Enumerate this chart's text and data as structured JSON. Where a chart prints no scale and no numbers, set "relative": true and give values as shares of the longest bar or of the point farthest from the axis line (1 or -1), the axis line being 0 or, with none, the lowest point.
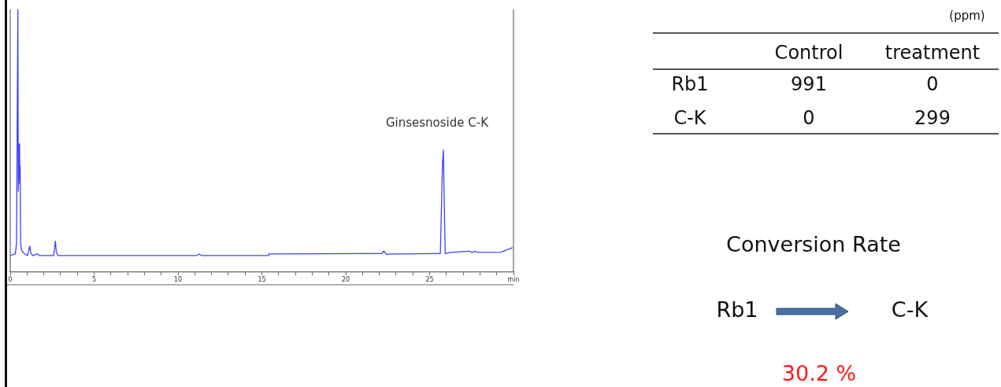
{
  "chart_data": [
    {
      "type": "line",
      "relative": true,
      "xlim": [
        0,
        30
      ],
      "xticks": [
        0,
        {
          "value": 1,
          "label": null
        },
        {
          "value": 2,
          "label": null
        },
        {
          "value": 3,
          "label": null
        },
        {
          "value": 4,
          "label": null
        },
        5,
        {
          "value": 6,
          "label": null
        },
        {
          "value": 7,
          "label": null
        },
        {
          "value": 8,
          "label": null
        },
        {
          "value": 9,
          "label": null
        },
        10,
        {
          "value": 11,
          "label": null
        },
        {
          "value": 12,
          "label": null
        },
        {
          "value": 13,
          "label": null
        },
        {
          "value": 14,
          "label": null
        },
        15,
        {
          "value": 16,
          "label": null
        },
        {
          "value": 17,
          "label": null
        },
        {
          "value": 18,
          "label": null
        },
        {
          "value": 19,
          "label": null
        },
        20,
        {
          "value": 21,
          "label": null
        },
        {
          "value": 22,
          "label": null
        },
        {
          "value": 23,
          "label": null
        },
        {
          "value": 24,
          "label": null
        },
        25,
        {
          "value": 26,
          "label": null
        },
        {
          "value": 27,
          "label": null
        },
        {
          "value": 28,
          "label": null
        },
        {
          "value": 29,
          "label": null
        },
        {
          "value": 30,
          "label": "min"
        }
      ],
      "x": [
        0,
        0.3,
        0.375,
        0.42,
        0.455,
        0.48,
        0.53,
        0.56,
        0.59,
        0.62,
        0.67,
        0.8,
        1.03,
        1.16,
        1.23,
        1.34,
        1.63,
        1.73,
        2.59,
        2.69,
        2.75,
        2.86,
        11.11,
        11.27,
        11.42,
        15.4,
        15.41,
        20.88,
        22.13,
        22.28,
        22.44,
        22.68,
        25.18,
        25.64,
        25.77,
        25.82,
        25.88,
        25.93,
        26.27,
        27.36,
        27.52,
        27.71,
        27.86,
        29.24,
        29.94
      ],
      "series": [
        {
          "color": "#4040ff",
          "values": [
            0.063,
            0.069,
            0.108,
            0.626,
            1.0,
            0.308,
            0.488,
            0.338,
            0.407,
            0.108,
            0.084,
            0.072,
            0.063,
            0.099,
            0.072,
            0.063,
            0.07,
            0.063,
            0.063,
            0.118,
            0.075,
            0.063,
            0.063,
            0.069,
            0.063,
            0.063,
            0.069,
            0.071,
            0.071,
            0.08,
            0.067,
            0.069,
            0.071,
            0.071,
            0.417,
            0.465,
            0.237,
            0.071,
            0.075,
            0.08,
            0.075,
            0.08,
            0.075,
            0.076,
            0.093
          ]
        }
      ],
      "annotations": [
        {
          "text": "Ginsesnoside C-K",
          "x": 25.82,
          "y": 0.465
        }
      ]
    },
    {
      "type": "other",
      "title": "Conversion Rate",
      "annotations": [
        "(ppm)",
        "Control",
        "treatment",
        "Rb1",
        "991",
        "0",
        "C-K",
        "0",
        "299",
        "Rb1",
        "C-K",
        "30.2 %"
      ]
    }
  ]
}
